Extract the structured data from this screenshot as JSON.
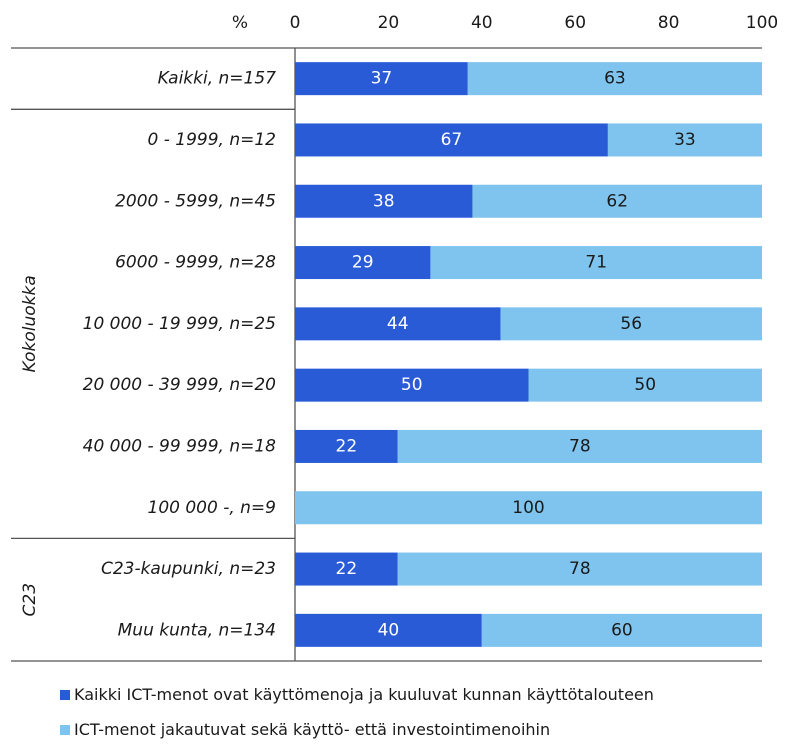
{
  "chart_data": {
    "type": "bar",
    "orientation": "horizontal",
    "stacked": true,
    "unit_label": "%",
    "xlim": [
      0,
      100
    ],
    "x_ticks": [
      "0",
      "20",
      "40",
      "60",
      "80",
      "100"
    ],
    "groups": [
      {
        "name": "",
        "categories": [
          "Kaikki, n=157"
        ]
      },
      {
        "name": "Kokoluokka",
        "categories": [
          "0 - 1999, n=12",
          "2000 - 5999, n=45",
          "6000 - 9999, n=28",
          "10 000 - 19 999, n=25",
          "20 000 - 39 999, n=20",
          "40 000 - 99 999, n=18",
          "100 000 -, n=9"
        ]
      },
      {
        "name": "C23",
        "categories": [
          "C23-kaupunki, n=23",
          "Muu kunta, n=134"
        ]
      }
    ],
    "categories": [
      "Kaikki, n=157",
      "0 - 1999, n=12",
      "2000 - 5999, n=45",
      "6000 - 9999, n=28",
      "10 000 - 19 999, n=25",
      "20 000 - 39 999, n=20",
      "40 000 - 99 999, n=18",
      "100 000 -, n=9",
      "C23-kaupunki, n=23",
      "Muu kunta, n=134"
    ],
    "series": [
      {
        "name": "Kaikki ICT-menot ovat käyttömenoja ja kuuluvat kunnan käyttötalouteen",
        "color": "#2a5bd7",
        "label_color": "#ffffff",
        "values": [
          37,
          67,
          38,
          29,
          44,
          50,
          22,
          0,
          22,
          40
        ]
      },
      {
        "name": "ICT-menot jakautuvat sekä käyttö- että investointimenoihin",
        "color": "#7fc4ee",
        "label_color": "#1a1a1a",
        "values": [
          63,
          33,
          62,
          71,
          56,
          50,
          78,
          100,
          78,
          60
        ]
      }
    ],
    "legend_position": "bottom",
    "grid": false
  }
}
